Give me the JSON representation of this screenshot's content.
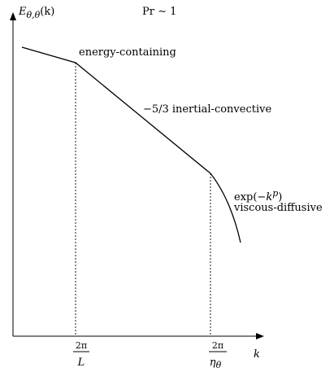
{
  "diagram": {
    "y_axis_label": {
      "base": "E",
      "subscript": "θ,θ",
      "argument": "(k)"
    },
    "x_axis_label": "k",
    "prandtl": "Pr ∼ 1",
    "regimes": {
      "energy_containing": "energy-containing",
      "inertial": {
        "exponent": "−5/3",
        "name": "inertial-convective"
      },
      "dissipative": {
        "formula_prefix": "exp(−",
        "formula_var": "k",
        "formula_power": "p",
        "formula_suffix": ")",
        "name": "viscous-diffusive"
      }
    },
    "tick_left": {
      "numerator": "2π",
      "denominator": "L"
    },
    "tick_right": {
      "numerator": "2π",
      "denominator_var": "η",
      "denominator_sub": "θ"
    }
  }
}
